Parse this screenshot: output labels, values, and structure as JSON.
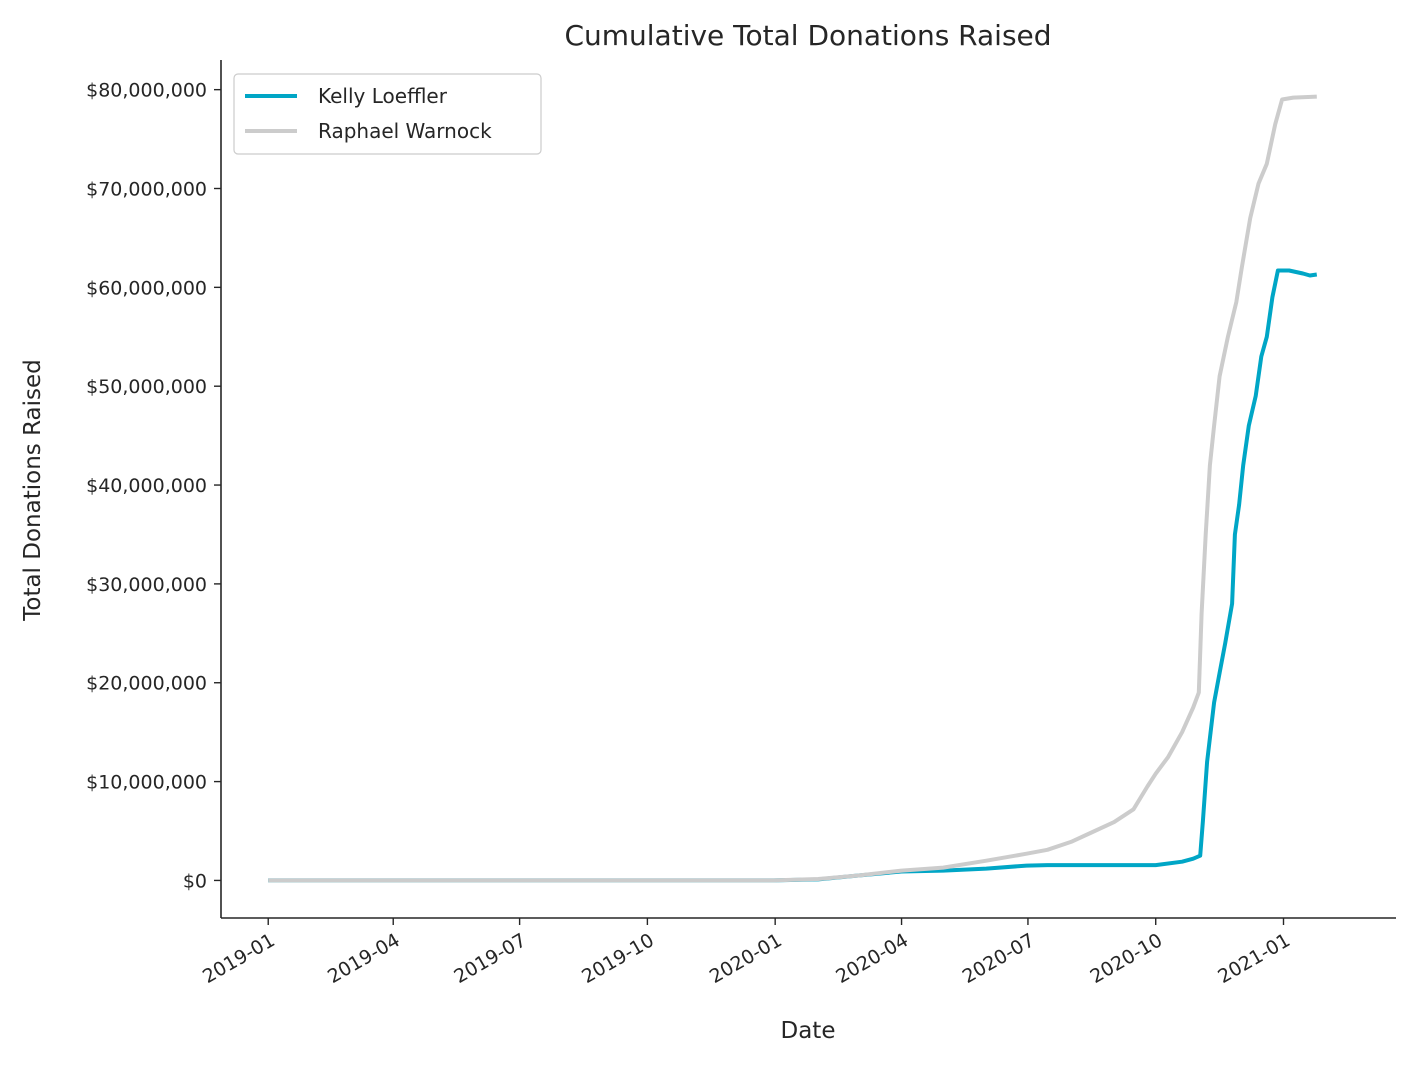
{
  "chart_data": {
    "type": "line",
    "title": "Cumulative Total Donations Raised",
    "xlabel": "Date",
    "ylabel": "Total Donations Raised",
    "x_ticks": [
      "2019-01",
      "2019-04",
      "2019-07",
      "2019-10",
      "2020-01",
      "2020-04",
      "2020-07",
      "2020-10",
      "2021-01"
    ],
    "y_ticks": [
      "$0",
      "$10,000,000",
      "$20,000,000",
      "$30,000,000",
      "$40,000,000",
      "$50,000,000",
      "$60,000,000",
      "$70,000,000",
      "$80,000,000"
    ],
    "xlim": [
      "2018-11-28",
      "2021-03-23"
    ],
    "ylim": [
      -3800000,
      83000000
    ],
    "grid": false,
    "legend_position": "top-left",
    "colors": {
      "text": "#262626",
      "axis": "#262626"
    },
    "series": [
      {
        "name": "Kelly Loeffler",
        "color": "#00a6c6",
        "points": [
          [
            "2019-01-01",
            0
          ],
          [
            "2019-12-31",
            0
          ],
          [
            "2020-02-01",
            100000
          ],
          [
            "2020-03-01",
            500000
          ],
          [
            "2020-04-01",
            900000
          ],
          [
            "2020-05-01",
            1000000
          ],
          [
            "2020-06-01",
            1200000
          ],
          [
            "2020-06-30",
            1500000
          ],
          [
            "2020-07-15",
            1550000
          ],
          [
            "2020-10-01",
            1550000
          ],
          [
            "2020-10-20",
            1900000
          ],
          [
            "2020-10-28",
            2200000
          ],
          [
            "2020-11-02",
            2500000
          ],
          [
            "2020-11-04",
            6000000
          ],
          [
            "2020-11-07",
            12000000
          ],
          [
            "2020-11-12",
            18000000
          ],
          [
            "2020-11-16",
            21000000
          ],
          [
            "2020-11-20",
            24000000
          ],
          [
            "2020-11-25",
            28000000
          ],
          [
            "2020-11-27",
            35000000
          ],
          [
            "2020-11-30",
            38000000
          ],
          [
            "2020-12-03",
            42000000
          ],
          [
            "2020-12-07",
            46000000
          ],
          [
            "2020-12-12",
            49000000
          ],
          [
            "2020-12-16",
            53000000
          ],
          [
            "2020-12-20",
            55000000
          ],
          [
            "2020-12-24",
            59000000
          ],
          [
            "2020-12-28",
            61700000
          ],
          [
            "2021-01-05",
            61700000
          ],
          [
            "2021-01-15",
            61400000
          ],
          [
            "2021-01-20",
            61200000
          ],
          [
            "2021-01-25",
            61300000
          ]
        ]
      },
      {
        "name": "Raphael Warnock",
        "color": "#cccccc",
        "points": [
          [
            "2019-01-01",
            0
          ],
          [
            "2019-12-31",
            0
          ],
          [
            "2020-02-01",
            150000
          ],
          [
            "2020-03-01",
            500000
          ],
          [
            "2020-04-01",
            1000000
          ],
          [
            "2020-05-01",
            1300000
          ],
          [
            "2020-06-01",
            2000000
          ],
          [
            "2020-06-30",
            2700000
          ],
          [
            "2020-07-15",
            3100000
          ],
          [
            "2020-08-01",
            3900000
          ],
          [
            "2020-08-15",
            4800000
          ],
          [
            "2020-09-01",
            5900000
          ],
          [
            "2020-09-15",
            7200000
          ],
          [
            "2020-09-25",
            9500000
          ],
          [
            "2020-10-01",
            10800000
          ],
          [
            "2020-10-10",
            12500000
          ],
          [
            "2020-10-20",
            15000000
          ],
          [
            "2020-10-28",
            17500000
          ],
          [
            "2020-11-01",
            19000000
          ],
          [
            "2020-11-03",
            27000000
          ],
          [
            "2020-11-06",
            35000000
          ],
          [
            "2020-11-09",
            42000000
          ],
          [
            "2020-11-12",
            46000000
          ],
          [
            "2020-11-16",
            51000000
          ],
          [
            "2020-11-22",
            55000000
          ],
          [
            "2020-11-28",
            58500000
          ],
          [
            "2020-12-02",
            62000000
          ],
          [
            "2020-12-08",
            67000000
          ],
          [
            "2020-12-14",
            70500000
          ],
          [
            "2020-12-20",
            72500000
          ],
          [
            "2020-12-26",
            76500000
          ],
          [
            "2020-12-31",
            79000000
          ],
          [
            "2021-01-08",
            79200000
          ],
          [
            "2021-01-25",
            79300000
          ]
        ]
      }
    ]
  }
}
